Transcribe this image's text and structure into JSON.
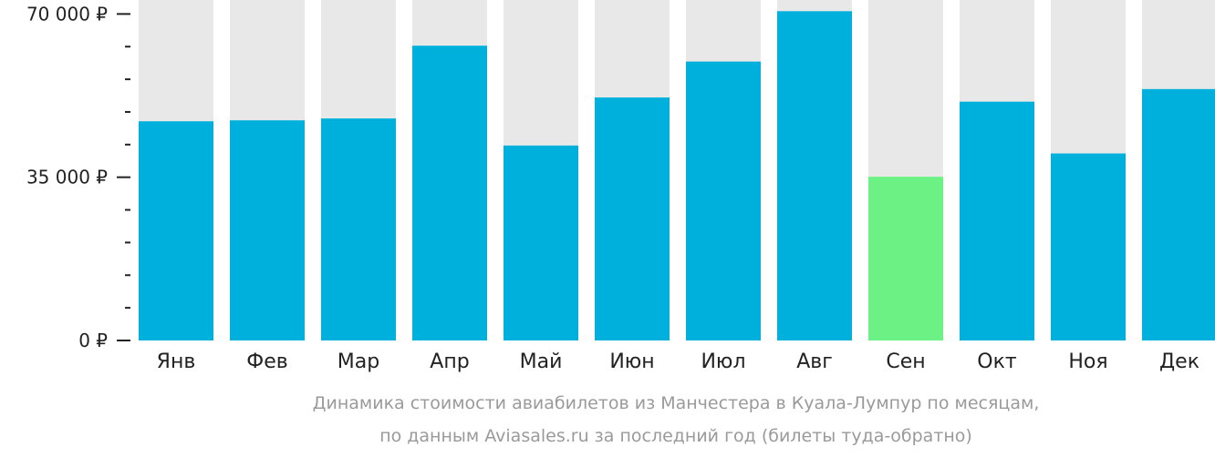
{
  "chart_data": {
    "type": "bar",
    "categories": [
      "Янв",
      "Фев",
      "Мар",
      "Апр",
      "Май",
      "Июн",
      "Июл",
      "Авг",
      "Сен",
      "Окт",
      "Ноя",
      "Дек"
    ],
    "values": [
      47000,
      47200,
      47600,
      63200,
      41800,
      52100,
      59800,
      70600,
      35100,
      51200,
      40100,
      53900
    ],
    "highlight_index": 8,
    "ylim": [
      0,
      73000
    ],
    "y_ticks": [
      {
        "value": 0,
        "label": "0 ₽"
      },
      {
        "value": 35000,
        "label": "35 000 ₽"
      },
      {
        "value": 70000,
        "label": "70 000 ₽"
      }
    ],
    "y_minor_step": 7000,
    "title": "",
    "xlabel": "",
    "ylabel": "",
    "grid": false
  },
  "caption": {
    "line1": "Динамика стоимости авиабилетов из Манчестера в Куала-Лумпур по месяцам,",
    "line2": "по данным Aviasales.ru за последний год (билеты туда-обратно)"
  },
  "colors": {
    "bar": "#00b0dc",
    "highlight": "#6cf185",
    "track": "#e8e8e8",
    "axis": "#222222"
  }
}
